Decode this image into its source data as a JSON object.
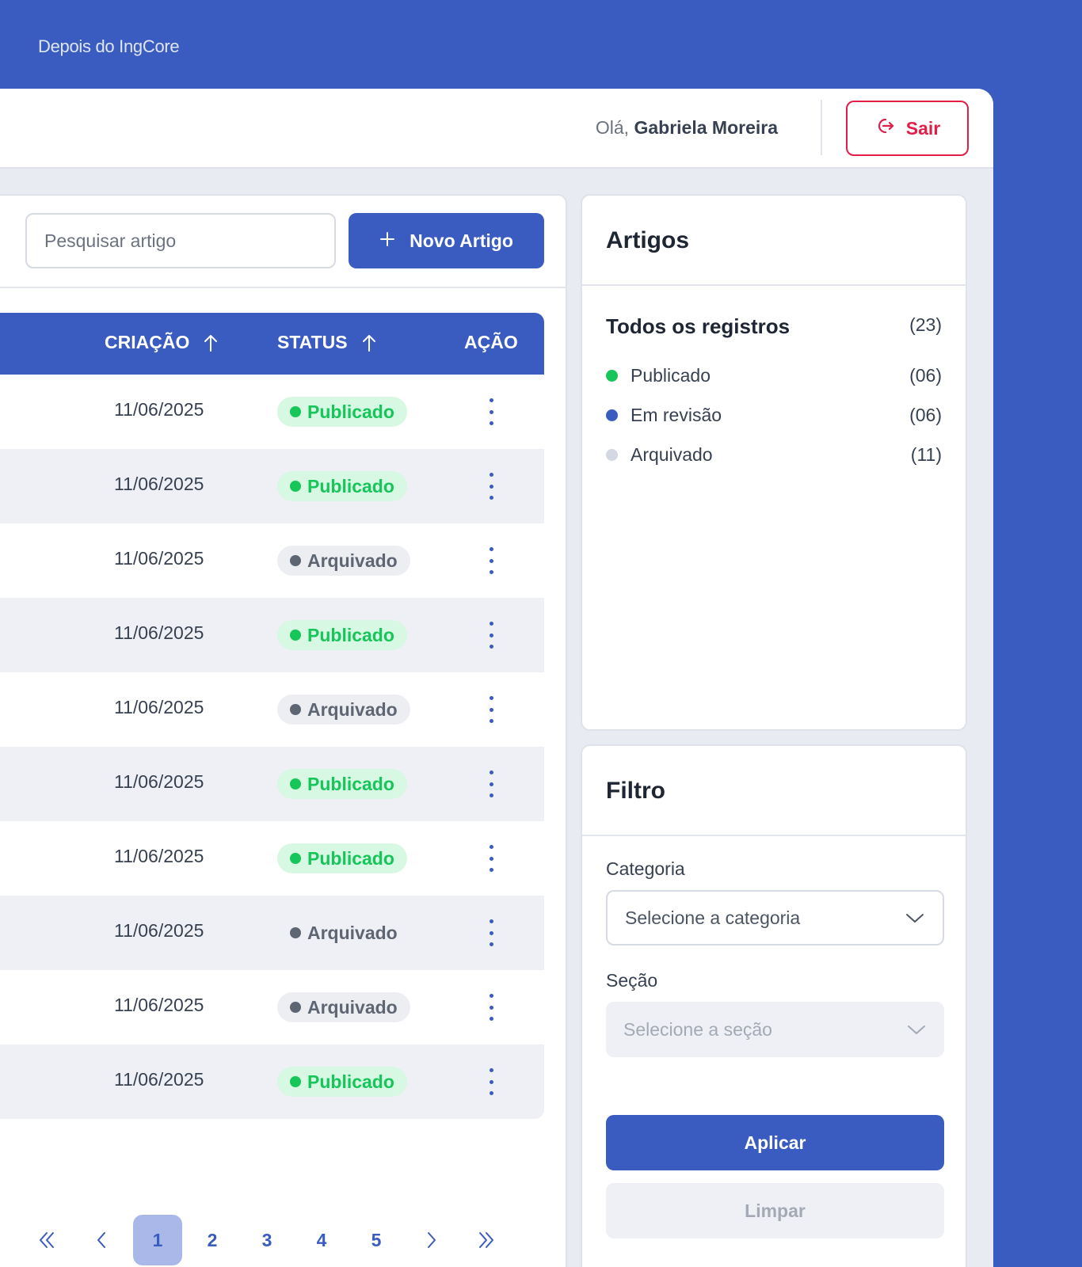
{
  "brand": "Depois do IngCore",
  "header": {
    "greeting_prefix": "Olá,",
    "user_name": "Gabriela Moreira",
    "logout_label": "Sair"
  },
  "toolbar": {
    "search_placeholder": "Pesquisar artigo",
    "new_label": "Novo Artigo"
  },
  "table": {
    "columns": {
      "criacao": "CRIAÇÃO",
      "status": "STATUS",
      "acao": "AÇÃO"
    },
    "rows": [
      {
        "date": "11/06/2025",
        "status": "Publicado"
      },
      {
        "date": "11/06/2025",
        "status": "Publicado"
      },
      {
        "date": "11/06/2025",
        "status": "Arquivado"
      },
      {
        "date": "11/06/2025",
        "status": "Publicado"
      },
      {
        "date": "11/06/2025",
        "status": "Arquivado"
      },
      {
        "date": "11/06/2025",
        "status": "Publicado"
      },
      {
        "date": "11/06/2025",
        "status": "Publicado"
      },
      {
        "date": "11/06/2025",
        "status": "Arquivado"
      },
      {
        "date": "11/06/2025",
        "status": "Arquivado"
      },
      {
        "date": "11/06/2025",
        "status": "Publicado"
      }
    ]
  },
  "pagination": {
    "pages": [
      "1",
      "2",
      "3",
      "4",
      "5"
    ],
    "current": "1"
  },
  "artigos": {
    "title": "Artigos",
    "all_label": "Todos os registros",
    "all_count": "(23)",
    "stats": [
      {
        "label": "Publicado",
        "count": "(06)",
        "color": "#16c65a"
      },
      {
        "label": "Em revisão",
        "count": "(06)",
        "color": "#3a5bbf"
      },
      {
        "label": "Arquivado",
        "count": "(11)",
        "color": "#d3d8e2"
      }
    ]
  },
  "filtro": {
    "title": "Filtro",
    "categoria_label": "Categoria",
    "categoria_placeholder": "Selecione a categoria",
    "secao_label": "Seção",
    "secao_placeholder": "Selecione a seção",
    "apply_label": "Aplicar",
    "clear_label": "Limpar"
  },
  "colors": {
    "brand": "#3a5bbf",
    "published": "#16c65a",
    "archived": "#5f6673",
    "danger": "#e11d48"
  }
}
